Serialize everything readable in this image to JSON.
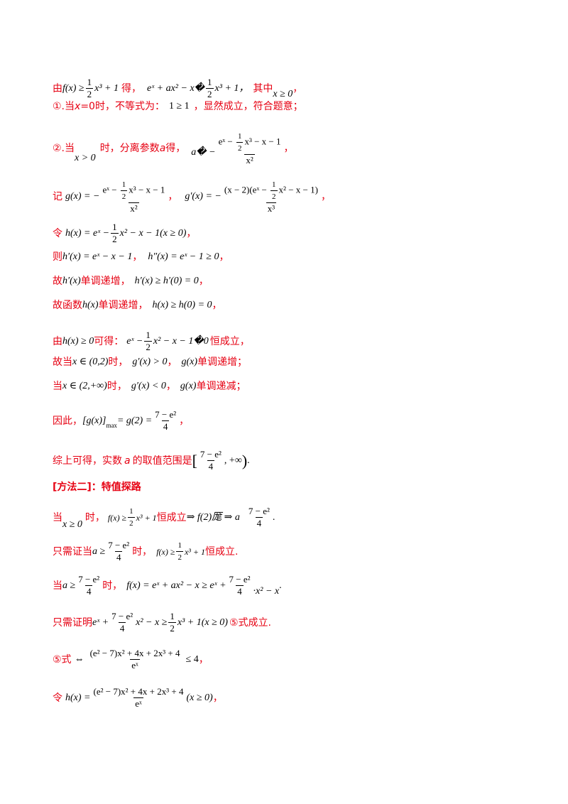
{
  "l1": {
    "a": "由",
    "b": "f(x) ≥ ",
    "c": "1",
    "d": "2",
    "e": "x³ + 1",
    "f": "得，",
    "g": "eˣ + ax² − x�",
    "h": "1",
    "i": "2",
    "j": "x³ + 1，",
    "k": "其中",
    "l": "x ≥ 0",
    "m": "，"
  },
  "l2": {
    "a": "①.当",
    "b": "x",
    "c": "=0时，不等式为：",
    "d": "1 ≥ 1",
    "e": "，显然成立，符合题意；"
  },
  "l3": {
    "a": "②.当",
    "b": "x > 0",
    "c": "时，分离参数",
    "d": "a",
    "e": "得，",
    "f": "a� −",
    "g": "eˣ − ",
    "h": "1",
    "i": "2",
    "j": "x³ − x − 1",
    "k": "x²",
    "l": "，"
  },
  "l4": {
    "a": "记",
    "b": "g(x) = −",
    "c": "eˣ − ",
    "d": "1",
    "e": "2",
    "f": "x³ − x − 1",
    "g": "x²",
    "h": "，",
    "i": "g′(x) = −",
    "j": "(x − 2)(eˣ − ",
    "k": "1",
    "l": "2",
    "m": "x² − x − 1)",
    "n": "x³",
    "o": "，"
  },
  "l5": {
    "a": "令",
    "b": "h(x) = eˣ − ",
    "c": "1",
    "d": "2",
    "e": "x² − x − 1(x ≥ 0)",
    "f": "，"
  },
  "l6": {
    "a": "则",
    "b": "h′(x) = eˣ − x − 1",
    "c": "，",
    "d": "h″(x) = eˣ − 1 ≥ 0",
    "e": "，"
  },
  "l7": {
    "a": "故",
    "b": "h′(x)",
    "c": "单调递增，",
    "d": "h′(x) ≥ h′(0) = 0",
    "e": "，"
  },
  "l8": {
    "a": "故函数",
    "b": "h(x)",
    "c": "单调递增，",
    "d": "h(x) ≥ h(0) = 0",
    "e": "，"
  },
  "l9": {
    "a": "由",
    "b": "h(x) ≥ 0",
    "c": "可得：",
    "d": "eˣ − ",
    "e": "1",
    "f": "2",
    "g": "x² − x − 1�0",
    "h": "恒成立，"
  },
  "l10": {
    "a": "故当",
    "b": "x ∈ (0,2)",
    "c": "时，",
    "d": "g′(x) > 0",
    "e": "，",
    "f": "g(x)",
    "g": "单调递增；"
  },
  "l11": {
    "a": "当",
    "b": "x ∈ (2,+∞)",
    "c": "时，",
    "d": "g′(x) < 0",
    "e": "，",
    "f": "g(x)",
    "g": "单调递减；"
  },
  "l12": {
    "a": "因此，",
    "b": "[g(x)]",
    "c": "max",
    "d": " = g(2) = ",
    "e": "7 − e²",
    "f": "4",
    "g": "，"
  },
  "l13": {
    "a": "综上可得，实数",
    "b": "a",
    "c": "的取值范围是",
    "d": "7 − e²",
    "e": "4",
    "f": ", +∞",
    "g": "."
  },
  "l14": {
    "a": "[方法二]：特值探路"
  },
  "l15": {
    "a": "当",
    "b": "x ≥ 0",
    "c": "时，",
    "d": "f(x) ≥ ",
    "e": "1",
    "f": "2",
    "g": "x³ + 1",
    "h": "恒成立",
    "i": "⇒ f(2)厖 ⇒ a",
    "j": "7 − e²",
    "k": "4",
    "l": "."
  },
  "l16": {
    "a": "只需证当",
    "b": "a ≥ ",
    "c": "7 − e²",
    "d": "4",
    "e": "时，",
    "f": "f(x) ≥ ",
    "g": "1",
    "h": "2",
    "i": "x³ + 1",
    "j": "恒成立."
  },
  "l17": {
    "a": "当",
    "b": "a ≥ ",
    "c": "7 − e²",
    "d": "4",
    "e": "时，",
    "f": "f(x) = eˣ + ax² − x ≥ eˣ + ",
    "g": "7 − e²",
    "h": "4",
    "i": "·x² − x",
    "j": "."
  },
  "l18": {
    "a": "只需证明",
    "b": "eˣ + ",
    "c": "7 − e²",
    "d": "4",
    "e": "x² − x ≥ ",
    "f": "1",
    "g": "2",
    "h": "x³ + 1(x ≥ 0)",
    "i": "⑤式成立."
  },
  "l19": {
    "a": "⑤式",
    "b": "⇔",
    "c": "(e² − 7)x² + 4x + 2x³ + 4",
    "d": "eˣ",
    "e": "≤ 4",
    "f": "，"
  },
  "l20": {
    "a": "令",
    "b": "h(x) = ",
    "c": "(e² − 7)x² + 4x + 2x³ + 4",
    "d": "eˣ",
    "e": "(x ≥ 0)",
    "f": "，"
  }
}
